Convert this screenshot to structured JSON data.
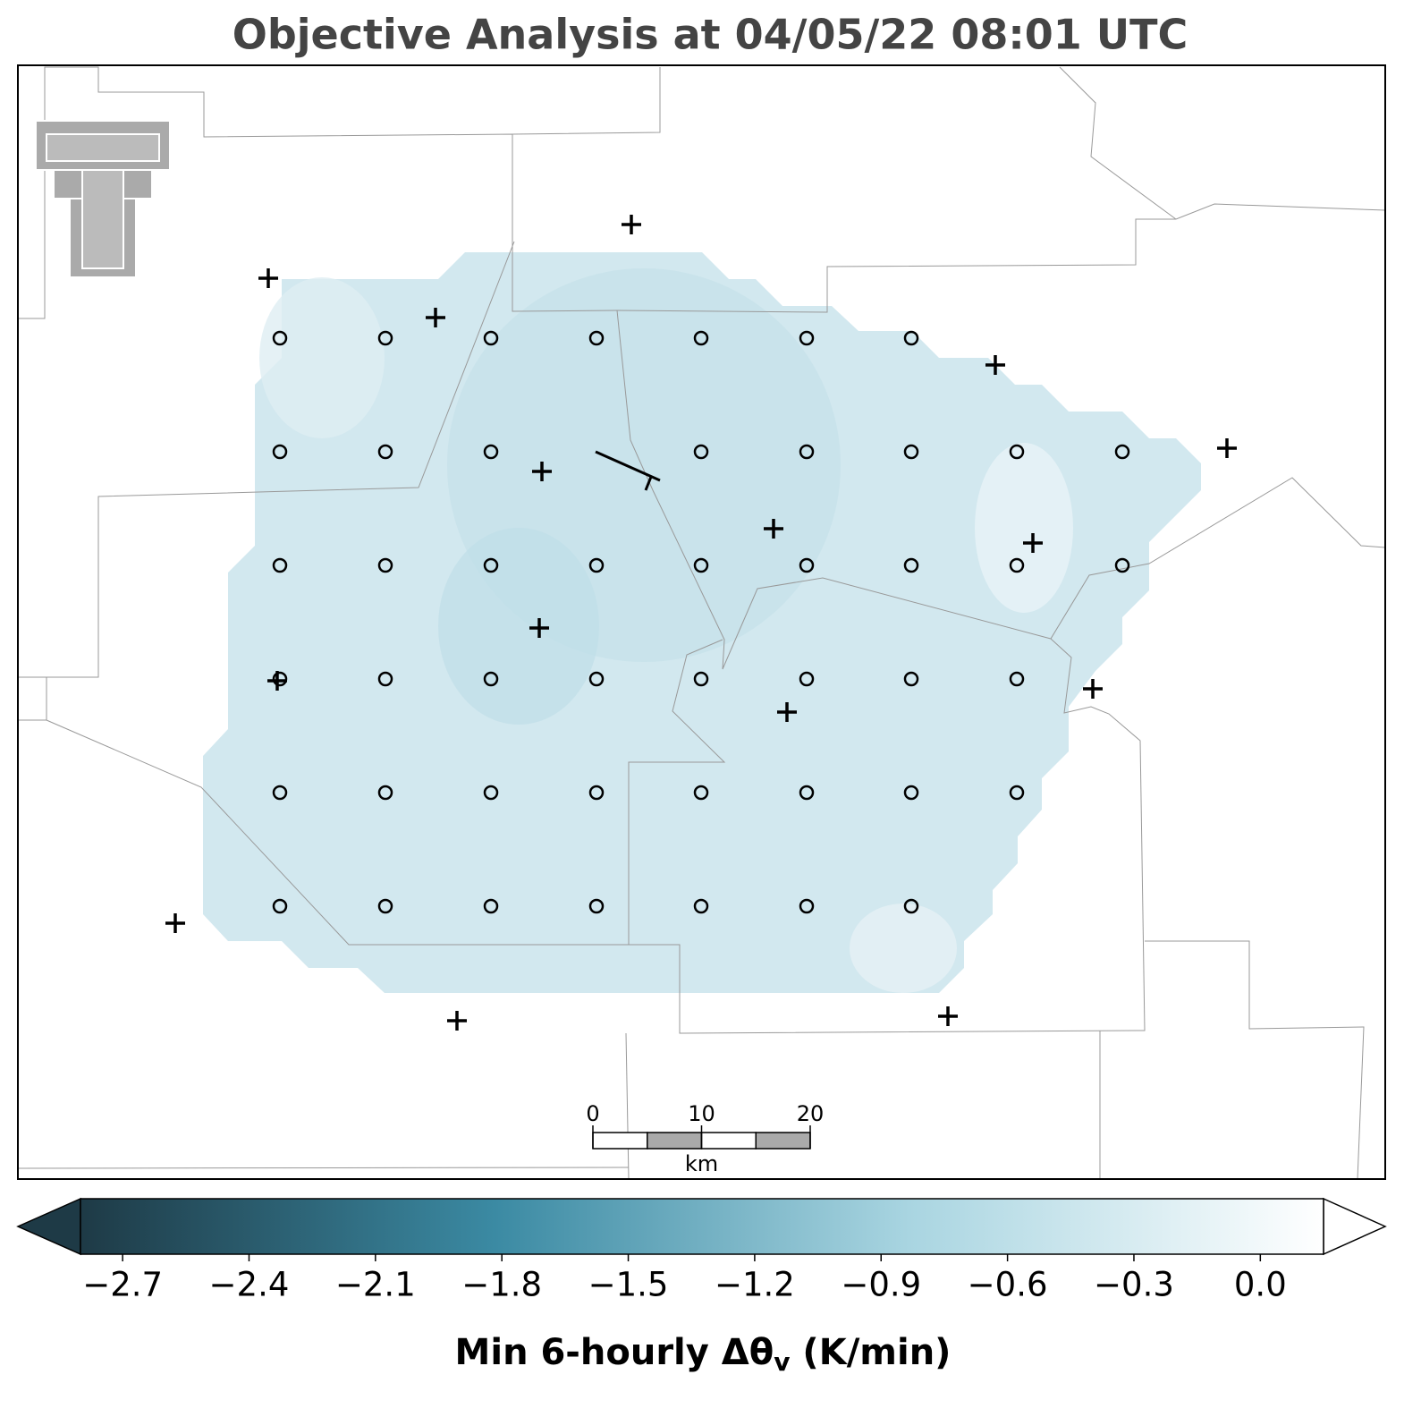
{
  "title": "Objective Analysis at 04/05/22 08:01 UTC",
  "scale_bar": {
    "ticks": [
      0,
      10,
      20
    ],
    "lim": [
      0,
      20
    ],
    "unit": "km"
  },
  "colorbar": {
    "label": "Min 6-hourly Δθ",
    "label_sub": "v",
    "label_end": " (K/min)",
    "lim": [
      -2.8,
      0.15
    ],
    "colors": [
      "#1e3a46",
      "#3b8aa3",
      "#a9d5e1",
      "#ffffff"
    ],
    "ticks": [
      {
        "value": -2.7,
        "label": "−2.7"
      },
      {
        "value": -2.4,
        "label": "−2.4"
      },
      {
        "value": -2.1,
        "label": "−2.1"
      },
      {
        "value": -1.8,
        "label": "−1.8"
      },
      {
        "value": -1.5,
        "label": "−1.5"
      },
      {
        "value": -1.2,
        "label": "−1.2"
      },
      {
        "value": -0.9,
        "label": "−0.9"
      },
      {
        "value": -0.6,
        "label": "−0.6"
      },
      {
        "value": -0.3,
        "label": "−0.3"
      },
      {
        "value": 0.0,
        "label": "0.0"
      }
    ]
  }
}
